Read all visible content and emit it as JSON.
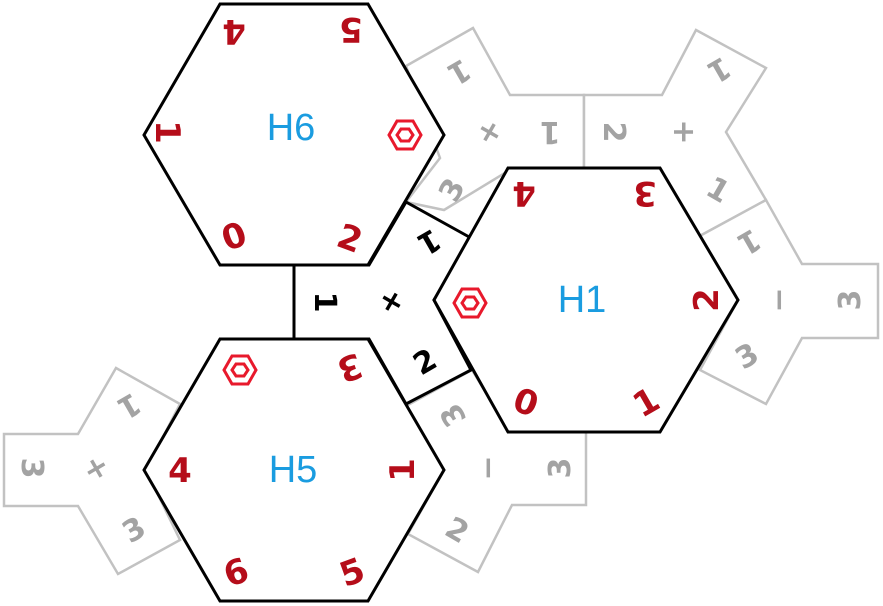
{
  "hexes": [
    {
      "label": "H6",
      "numbers": [
        "4",
        "5",
        "1",
        "0",
        "2"
      ]
    },
    {
      "label": "H1",
      "numbers": [
        "4",
        "3",
        "2",
        "1",
        "0"
      ]
    },
    {
      "label": "H5",
      "numbers": [
        "3",
        "4",
        "1",
        "6",
        "5"
      ]
    }
  ],
  "connectors": {
    "center": [
      "1",
      "+",
      "1",
      "2"
    ],
    "top": [
      "1",
      "+",
      "1",
      "3"
    ],
    "top_right": [
      "2",
      "+",
      "1",
      "1"
    ],
    "right": [
      "1",
      "−",
      "3",
      "3"
    ],
    "bottom": [
      "3",
      "−",
      "3",
      "2"
    ],
    "left": [
      "1",
      "+",
      "3",
      "3"
    ]
  },
  "colors": {
    "hex_label": "#1a9ce0",
    "red_number": "#b50d1a",
    "gray_number": "#a3a3a3",
    "marker": "#e8192c"
  },
  "marker_icon": "hexagon-ring-marker-icon"
}
